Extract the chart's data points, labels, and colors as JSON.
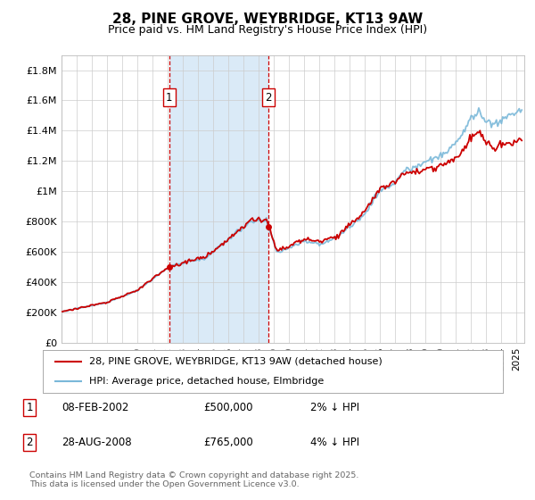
{
  "title": "28, PINE GROVE, WEYBRIDGE, KT13 9AW",
  "subtitle": "Price paid vs. HM Land Registry's House Price Index (HPI)",
  "ylabel_ticks": [
    "£0",
    "£200K",
    "£400K",
    "£600K",
    "£800K",
    "£1M",
    "£1.2M",
    "£1.4M",
    "£1.6M",
    "£1.8M"
  ],
  "ytick_vals": [
    0,
    200000,
    400000,
    600000,
    800000,
    1000000,
    1200000,
    1400000,
    1600000,
    1800000
  ],
  "ylim": [
    0,
    1900000
  ],
  "xlim_start": 1995.0,
  "xlim_end": 2025.5,
  "sale1_x": 2002.1,
  "sale1_y": 500000,
  "sale2_x": 2008.65,
  "sale2_y": 765000,
  "hpi_color": "#7ab8d9",
  "sale_color": "#cc0000",
  "shade_color": "#daeaf7",
  "legend_line1": "28, PINE GROVE, WEYBRIDGE, KT13 9AW (detached house)",
  "legend_line2": "HPI: Average price, detached house, Elmbridge",
  "annotation1_label": "1",
  "annotation1_date": "08-FEB-2002",
  "annotation1_price": "£500,000",
  "annotation1_hpi": "2% ↓ HPI",
  "annotation2_label": "2",
  "annotation2_date": "28-AUG-2008",
  "annotation2_price": "£765,000",
  "annotation2_hpi": "4% ↓ HPI",
  "footer": "Contains HM Land Registry data © Crown copyright and database right 2025.\nThis data is licensed under the Open Government Licence v3.0.",
  "title_fontsize": 11,
  "subtitle_fontsize": 9,
  "background_color": "#ffffff"
}
